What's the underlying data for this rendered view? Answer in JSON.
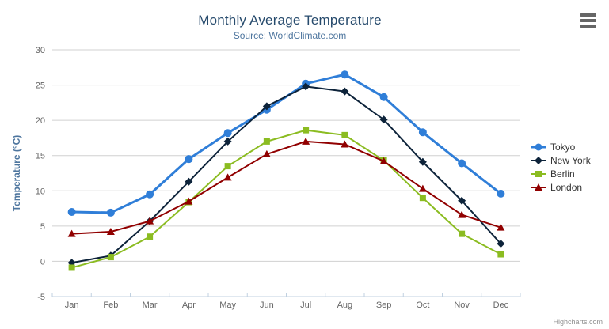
{
  "chart": {
    "title": "Monthly Average Temperature",
    "subtitle": "Source: WorldClimate.com",
    "credits": "Highcharts.com",
    "context_menu_icon": "hamburger-menu-icon"
  },
  "chart_data": {
    "type": "line",
    "title": "Monthly Average Temperature",
    "subtitle": "Source: WorldClimate.com",
    "categories": [
      "Jan",
      "Feb",
      "Mar",
      "Apr",
      "May",
      "Jun",
      "Jul",
      "Aug",
      "Sep",
      "Oct",
      "Nov",
      "Dec"
    ],
    "xlabel": "",
    "ylabel": "Temperature (°C)",
    "ylim": [
      -5,
      30
    ],
    "ytick_step": 5,
    "yticks": [
      -5,
      0,
      5,
      10,
      15,
      20,
      25,
      30
    ],
    "grid": "horizontal",
    "legend_position": "right",
    "series": [
      {
        "name": "Tokyo",
        "color": "#2f7ed8",
        "marker": "circle",
        "line_width": 3,
        "values": [
          7.0,
          6.9,
          9.5,
          14.5,
          18.2,
          21.5,
          25.2,
          26.5,
          23.3,
          18.3,
          13.9,
          9.6
        ]
      },
      {
        "name": "New York",
        "color": "#0d233a",
        "marker": "diamond",
        "line_width": 2,
        "values": [
          -0.2,
          0.8,
          5.7,
          11.3,
          17.0,
          22.0,
          24.8,
          24.1,
          20.1,
          14.1,
          8.6,
          2.5
        ]
      },
      {
        "name": "Berlin",
        "color": "#8bbc21",
        "marker": "square",
        "line_width": 2,
        "values": [
          -0.9,
          0.6,
          3.5,
          8.4,
          13.5,
          17.0,
          18.6,
          17.9,
          14.3,
          9.0,
          3.9,
          1.0
        ]
      },
      {
        "name": "London",
        "color": "#910000",
        "marker": "triangle",
        "line_width": 2,
        "values": [
          3.9,
          4.2,
          5.7,
          8.5,
          11.9,
          15.2,
          17.0,
          16.6,
          14.2,
          10.3,
          6.6,
          4.8
        ]
      }
    ]
  },
  "colors": {
    "title": "#274b6d",
    "subtitle": "#4d759e",
    "axis_labels": "#666666",
    "y_axis_title": "#4d759e",
    "gridline": "#d0d0d0",
    "axis_line": "#c0d0e0",
    "legend_text": "#333333",
    "credits": "#909090",
    "menu_icon": "#666666"
  }
}
